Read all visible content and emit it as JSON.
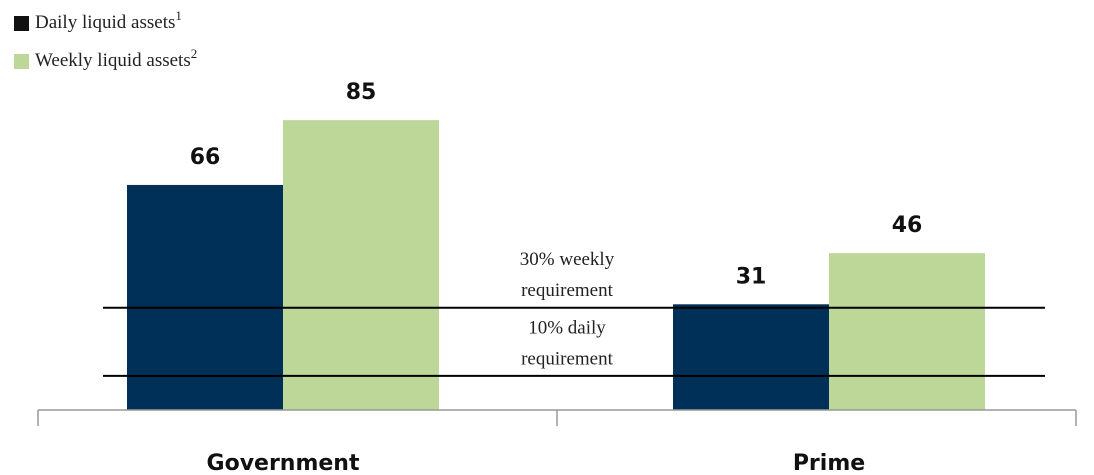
{
  "chart_data": {
    "type": "bar",
    "categories": [
      "Government",
      "Prime"
    ],
    "series": [
      {
        "name": "Daily liquid assets",
        "footnote": "1",
        "color": "#003057",
        "values": [
          66,
          31
        ]
      },
      {
        "name": "Weekly liquid assets",
        "footnote": "2",
        "color": "#bdd799",
        "values": [
          85,
          46
        ]
      }
    ],
    "ylim": [
      0,
      100
    ],
    "reference_lines": [
      {
        "value": 30,
        "label_lines": [
          "30% weekly",
          "requirement"
        ]
      },
      {
        "value": 10,
        "label_lines": [
          "10% daily",
          "requirement"
        ]
      }
    ]
  }
}
